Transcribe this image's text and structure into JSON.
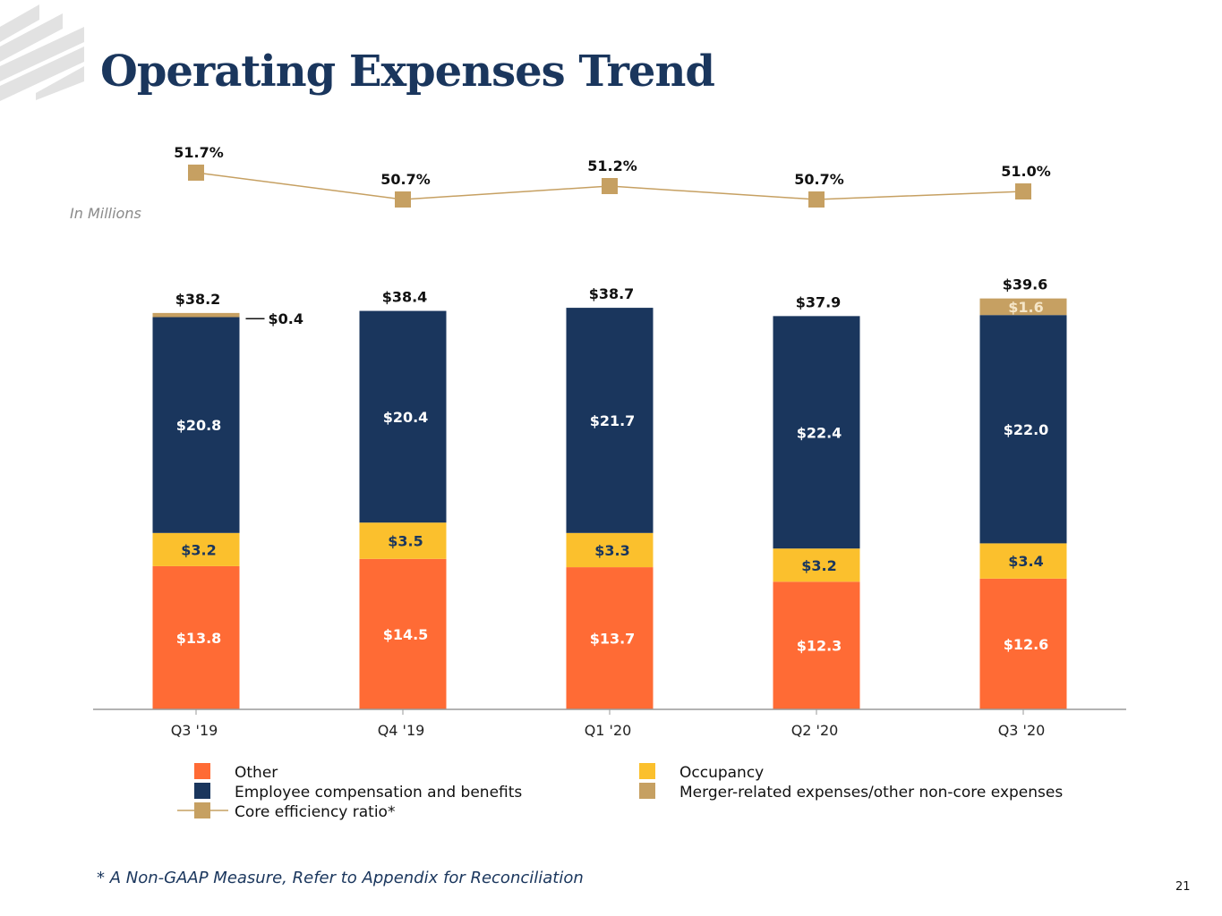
{
  "title": "Operating Expenses Trend",
  "units_note": "In Millions",
  "footnote": "* A Non-GAAP Measure, Refer to Appendix for Reconciliation",
  "page_number": "21",
  "colors": {
    "other": "#ff6b35",
    "occupancy": "#fbc02d",
    "employee": "#1a365d",
    "merger": "#c6a062",
    "ratio": "#c6a062",
    "title": "#1a365d"
  },
  "chart_data": {
    "type": "bar",
    "stacked": true,
    "title": "Operating Expenses Trend",
    "ylabel": "In Millions",
    "categories": [
      "Q3 '19",
      "Q4 '19",
      "Q1 '20",
      "Q2 '20",
      "Q3 '20"
    ],
    "series": [
      {
        "name": "Other",
        "key": "other",
        "values": [
          13.8,
          14.5,
          13.7,
          12.3,
          12.6
        ],
        "labels": [
          "$13.8",
          "$14.5",
          "$13.7",
          "$12.3",
          "$12.6"
        ]
      },
      {
        "name": "Occupancy",
        "key": "occupancy",
        "values": [
          3.2,
          3.5,
          3.3,
          3.2,
          3.4
        ],
        "labels": [
          "$3.2",
          "$3.5",
          "$3.3",
          "$3.2",
          "$3.4"
        ]
      },
      {
        "name": "Employee compensation and benefits",
        "key": "employee",
        "values": [
          20.8,
          20.4,
          21.7,
          22.4,
          22.0
        ],
        "labels": [
          "$20.8",
          "$20.4",
          "$21.7",
          "$22.4",
          "$22.0"
        ]
      },
      {
        "name": "Merger-related expenses/other non-core expenses",
        "key": "merger",
        "values": [
          0.4,
          0,
          0,
          0,
          1.6
        ],
        "labels": [
          "$0.4",
          "",
          "",
          "",
          "$1.6"
        ]
      }
    ],
    "totals": [
      38.2,
      38.4,
      38.7,
      37.9,
      39.6
    ],
    "total_labels": [
      "$38.2",
      "$38.4",
      "$38.7",
      "$37.9",
      "$39.6"
    ],
    "efficiency_ratio": {
      "name": "Core efficiency ratio*",
      "values": [
        51.7,
        50.7,
        51.2,
        50.7,
        51.0
      ],
      "labels": [
        "51.7%",
        "50.7%",
        "51.2%",
        "50.7%",
        "51.0%"
      ]
    },
    "legend": [
      {
        "label": "Other",
        "key": "other"
      },
      {
        "label": "Occupancy",
        "key": "occupancy"
      },
      {
        "label": "Employee compensation and benefits",
        "key": "employee"
      },
      {
        "label": "Merger-related expenses/other non-core expenses",
        "key": "merger"
      },
      {
        "label": "Core efficiency ratio*",
        "key": "ratio"
      }
    ],
    "ylim": [
      0,
      40
    ]
  }
}
